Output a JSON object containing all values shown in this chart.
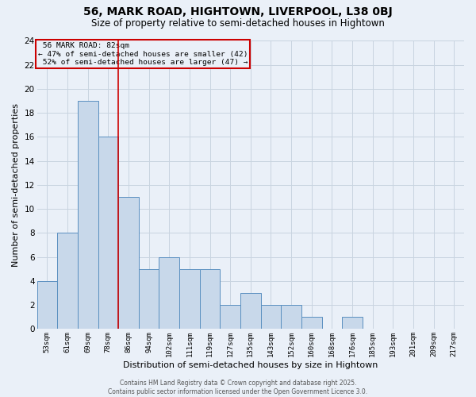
{
  "title1": "56, MARK ROAD, HIGHTOWN, LIVERPOOL, L38 0BJ",
  "title2": "Size of property relative to semi-detached houses in Hightown",
  "xlabel": "Distribution of semi-detached houses by size in Hightown",
  "ylabel": "Number of semi-detached properties",
  "bin_labels": [
    "53sqm",
    "61sqm",
    "69sqm",
    "78sqm",
    "86sqm",
    "94sqm",
    "102sqm",
    "111sqm",
    "119sqm",
    "127sqm",
    "135sqm",
    "143sqm",
    "152sqm",
    "160sqm",
    "168sqm",
    "176sqm",
    "185sqm",
    "193sqm",
    "201sqm",
    "209sqm",
    "217sqm"
  ],
  "bar_heights": [
    4,
    8,
    19,
    16,
    11,
    5,
    6,
    5,
    5,
    2,
    3,
    2,
    2,
    1,
    0,
    1,
    0,
    0,
    0,
    0,
    0
  ],
  "bar_color": "#c8d8ea",
  "bar_edge_color": "#5a8fc0",
  "bar_width": 1.0,
  "property_label": "56 MARK ROAD: 82sqm",
  "pct_smaller": 47,
  "count_smaller": 42,
  "pct_larger": 52,
  "count_larger": 47,
  "vline_color": "#cc0000",
  "vline_x_bin_index": 3.5,
  "ylim": [
    0,
    24
  ],
  "yticks": [
    0,
    2,
    4,
    6,
    8,
    10,
    12,
    14,
    16,
    18,
    20,
    22,
    24
  ],
  "grid_color": "#c8d4e0",
  "background_color": "#eaf0f8",
  "footer_line1": "Contains HM Land Registry data © Crown copyright and database right 2025.",
  "footer_line2": "Contains public sector information licensed under the Open Government Licence 3.0."
}
